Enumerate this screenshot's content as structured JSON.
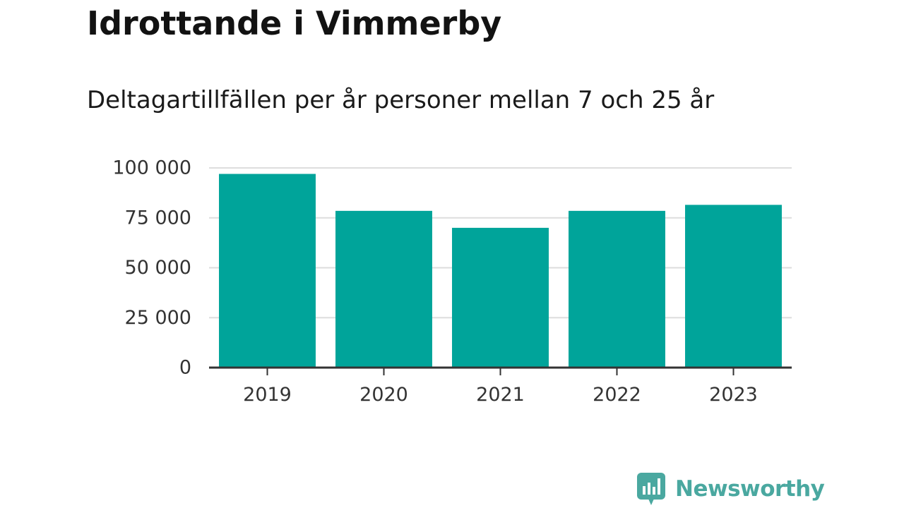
{
  "title": "Idrottande i Vimmerby",
  "subtitle": "Deltagartillfällen per år personer mellan 7 och 25 år",
  "brand": {
    "name": "Newsworthy",
    "color": "#4aa8a0",
    "icon": "newsworthy-logo-icon"
  },
  "colors": {
    "bar": "#00a49a",
    "grid": "#dddddd",
    "axis": "#333333"
  },
  "chart_data": {
    "type": "bar",
    "categories": [
      "2019",
      "2020",
      "2021",
      "2022",
      "2023"
    ],
    "values": [
      97000,
      78500,
      70000,
      78500,
      81500
    ],
    "ylim": [
      0,
      100000
    ],
    "yticks": [
      0,
      25000,
      50000,
      75000,
      100000
    ],
    "ytick_labels": [
      "0",
      "25 000",
      "50 000",
      "75 000",
      "100 000"
    ],
    "xlabel": "",
    "ylabel": "",
    "grid": true,
    "legend": false
  }
}
